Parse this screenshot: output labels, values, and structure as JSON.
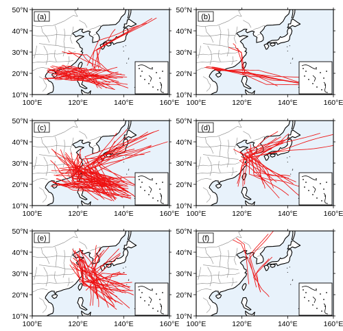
{
  "figure": {
    "panels": [
      {
        "id": "a",
        "label": "(a)",
        "show_lat": true
      },
      {
        "id": "b",
        "label": "(b)",
        "show_lat": true
      },
      {
        "id": "c",
        "label": "(c)",
        "show_lat": true
      },
      {
        "id": "d",
        "label": "(d)",
        "show_lat": true
      },
      {
        "id": "e",
        "label": "(e)",
        "show_lat": true
      },
      {
        "id": "f",
        "label": "(f)",
        "show_lat": true
      }
    ],
    "lon_ticks": [
      "100°E",
      "120°E",
      "140°E",
      "160°E"
    ],
    "lat_ticks": [
      "50°N",
      "40°N",
      "30°N",
      "20°N",
      "10°N"
    ],
    "map_extent": {
      "lon_min": 100,
      "lon_max": 160,
      "lat_min": 10,
      "lat_max": 50
    },
    "colors": {
      "ocean": "#e8f2fb",
      "land": "#ffffff",
      "border": "#888888",
      "coast": "#000000",
      "track": "#ee1111"
    }
  }
}
